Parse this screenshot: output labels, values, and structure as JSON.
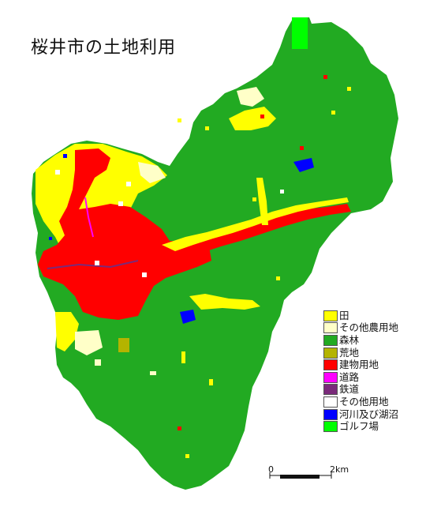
{
  "title": "桜井市の土地利用",
  "legend": [
    {
      "label": "田",
      "color": "#ffff00"
    },
    {
      "label": "その他農用地",
      "color": "#ffffc8"
    },
    {
      "label": "森林",
      "color": "#22aa22"
    },
    {
      "label": "荒地",
      "color": "#b4b400"
    },
    {
      "label": "建物用地",
      "color": "#ff0000"
    },
    {
      "label": "道路",
      "color": "#ff00ff"
    },
    {
      "label": "鉄道",
      "color": "#7a2a7a"
    },
    {
      "label": "その他用地",
      "color": "#ffffff"
    },
    {
      "label": "河川及び湖沼",
      "color": "#0000ff"
    },
    {
      "label": "ゴルフ場",
      "color": "#00ff00"
    }
  ],
  "scale_bar": {
    "start_label": "0",
    "end_label": "2km"
  }
}
